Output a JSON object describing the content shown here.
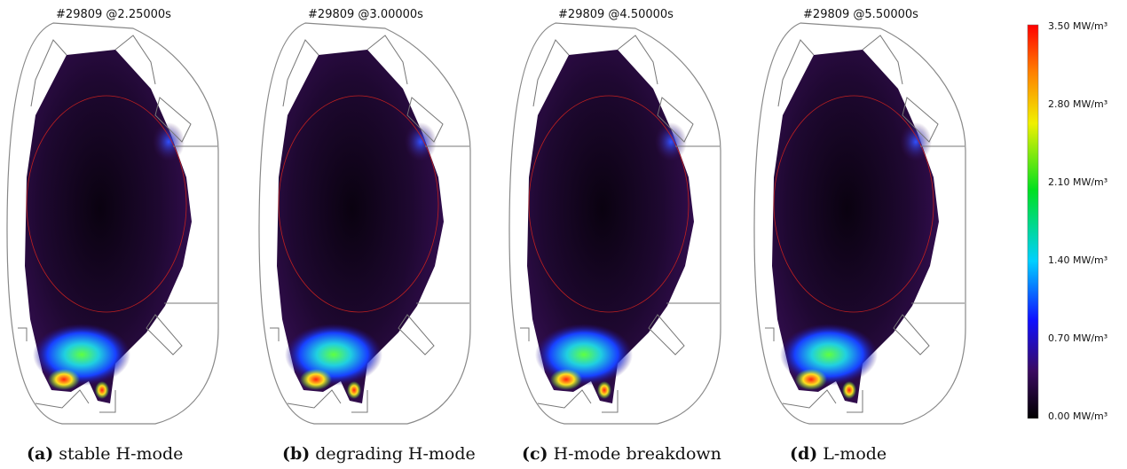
{
  "panels": [
    {
      "title": "#29809 @2.25000s",
      "label": "(a)",
      "caption": "stable H-mode"
    },
    {
      "title": "#29809 @3.00000s",
      "label": "(b)",
      "caption": "degrading H-mode"
    },
    {
      "title": "#29809 @4.50000s",
      "label": "(c)",
      "caption": "H-mode breakdown"
    },
    {
      "title": "#29809 @5.50000s",
      "label": "(d)",
      "caption": "L-mode"
    }
  ],
  "colorbar": {
    "labels": [
      "3.50 MW/m³",
      "2.80 MW/m³",
      "2.10 MW/m³",
      "1.40 MW/m³",
      "0.70 MW/m³",
      "0.00 MW/m³"
    ]
  }
}
